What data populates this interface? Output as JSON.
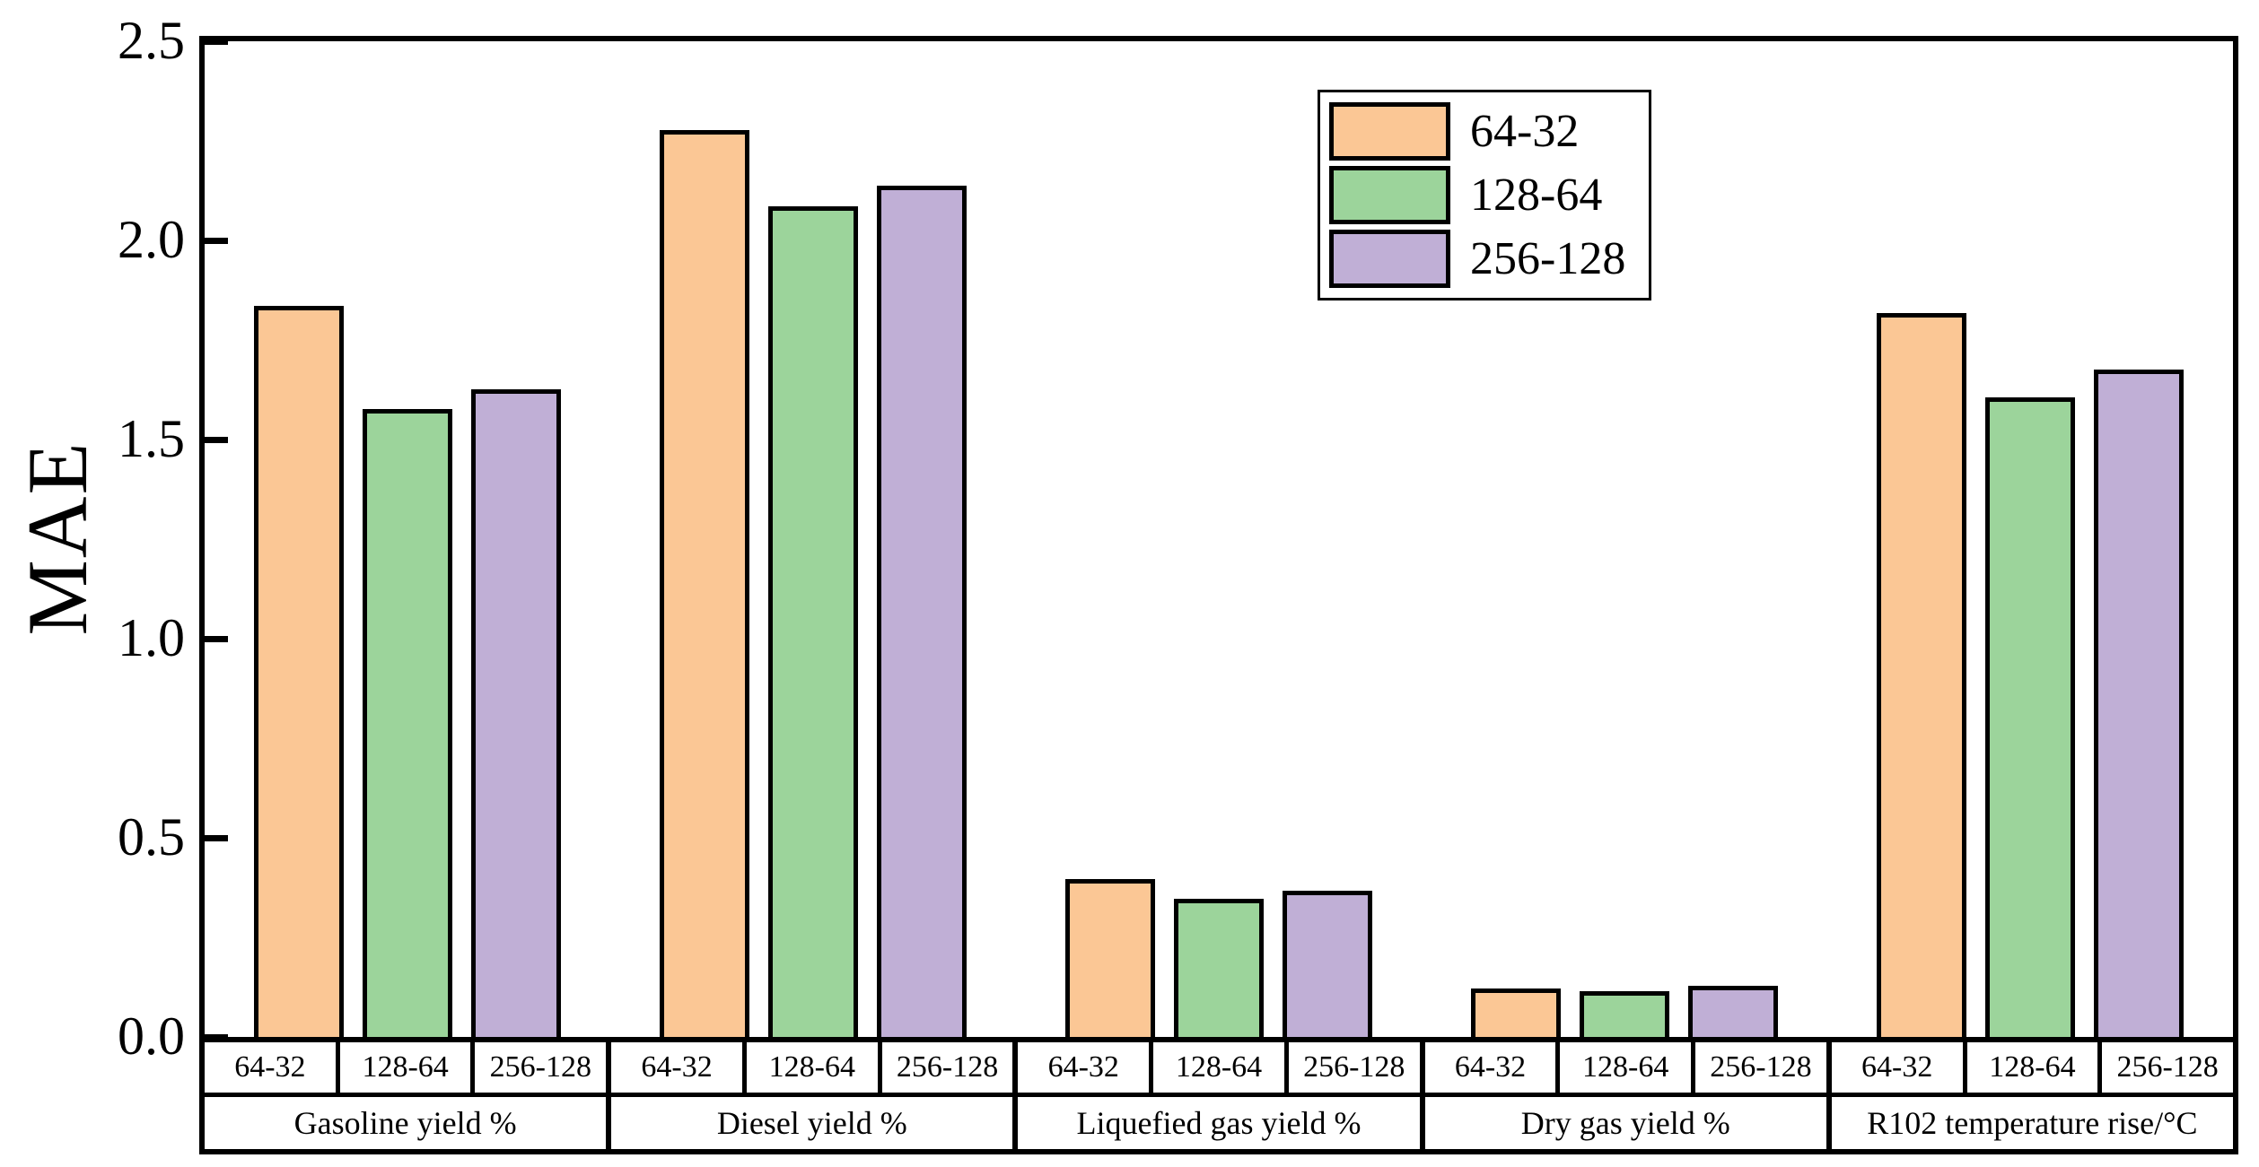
{
  "chart_data": {
    "type": "bar",
    "title": "",
    "xlabel": "",
    "ylabel": "MAE",
    "ylim": [
      0,
      2.5
    ],
    "yticks": [
      0.0,
      0.5,
      1.0,
      1.5,
      2.0,
      2.5
    ],
    "ytick_labels": [
      "0.0",
      "0.5",
      "1.0",
      "1.5",
      "2.0",
      "2.5"
    ],
    "categories": [
      "Gasoline yield %",
      "Diesel yield %",
      "Liquefied gas yield %",
      "Dry gas yield %",
      "R102 temperature rise/°C"
    ],
    "bar_labels": [
      "64-32",
      "128-64",
      "256-128"
    ],
    "series": [
      {
        "name": "64-32",
        "color": "#FBC795",
        "values": [
          1.85,
          2.29,
          0.41,
          0.135,
          1.83
        ]
      },
      {
        "name": "128-64",
        "color": "#9CD49B",
        "values": [
          1.59,
          2.1,
          0.36,
          0.128,
          1.62
        ]
      },
      {
        "name": "256-128",
        "color": "#C0AFD6",
        "values": [
          1.64,
          2.15,
          0.38,
          0.141,
          1.69
        ]
      }
    ],
    "legend": {
      "position": "upper-center-right",
      "entries": [
        "64-32",
        "128-64",
        "256-128"
      ]
    },
    "grid": false,
    "bar_border_color": "#000000",
    "background_color": "#FFFFFF"
  }
}
